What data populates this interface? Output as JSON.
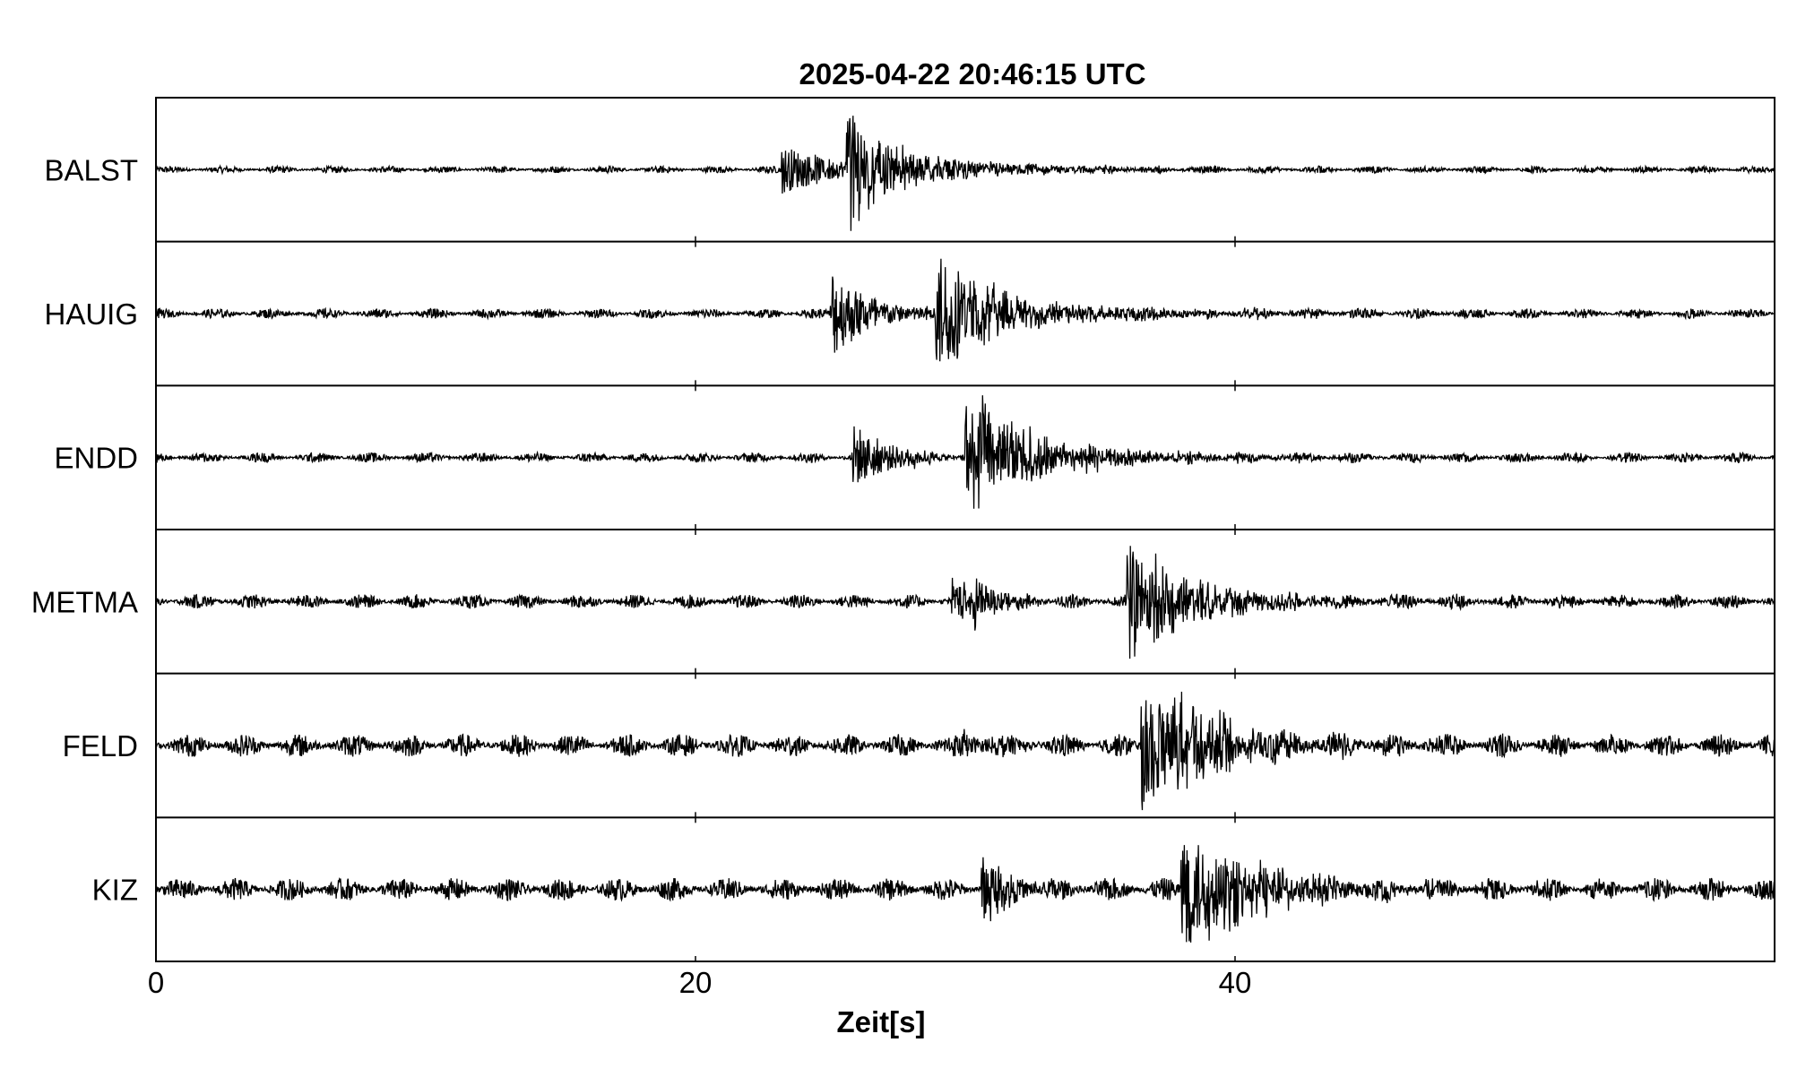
{
  "chart_data": {
    "type": "line",
    "title": "2025-04-22  20:46:15 UTC",
    "xlabel": "Zeit[s]",
    "ylabel": "",
    "xlim": [
      0,
      60
    ],
    "xticks": [
      0,
      20,
      40
    ],
    "xtick_labels": [
      "0",
      "20",
      "40"
    ],
    "grid": false,
    "line_color": "#000000",
    "series": [
      {
        "name": "BALST",
        "noise": 0.05,
        "events": [
          {
            "t": 23.2,
            "amp": 0.35,
            "decay": 2.0
          },
          {
            "t": 25.6,
            "amp": 0.95,
            "decay": 1.2
          },
          {
            "t": 26.2,
            "amp": 0.3,
            "decay": 4.0
          }
        ]
      },
      {
        "name": "HAUIG",
        "noise": 0.07,
        "events": [
          {
            "t": 25.0,
            "amp": 0.65,
            "decay": 1.5
          },
          {
            "t": 28.9,
            "amp": 0.9,
            "decay": 1.8
          },
          {
            "t": 29.5,
            "amp": 0.25,
            "decay": 5.0
          }
        ]
      },
      {
        "name": "ENDD",
        "noise": 0.07,
        "events": [
          {
            "t": 25.8,
            "amp": 0.45,
            "decay": 1.5
          },
          {
            "t": 30.0,
            "amp": 0.85,
            "decay": 2.0
          },
          {
            "t": 30.5,
            "amp": 0.25,
            "decay": 5.0
          }
        ]
      },
      {
        "name": "METMA",
        "noise": 0.1,
        "events": [
          {
            "t": 29.5,
            "amp": 0.3,
            "decay": 1.0
          },
          {
            "t": 30.3,
            "amp": 0.35,
            "decay": 1.0
          },
          {
            "t": 36.0,
            "amp": 0.9,
            "decay": 1.6
          },
          {
            "t": 37.0,
            "amp": 0.35,
            "decay": 3.5
          }
        ]
      },
      {
        "name": "FELD",
        "noise": 0.16,
        "events": [
          {
            "t": 29.8,
            "amp": 0.15,
            "decay": 1.5
          },
          {
            "t": 36.5,
            "amp": 0.95,
            "decay": 1.8
          },
          {
            "t": 37.5,
            "amp": 0.4,
            "decay": 4.0
          }
        ]
      },
      {
        "name": "KIZ",
        "noise": 0.16,
        "events": [
          {
            "t": 30.6,
            "amp": 0.45,
            "decay": 1.2
          },
          {
            "t": 38.0,
            "amp": 0.95,
            "decay": 1.6
          },
          {
            "t": 39.0,
            "amp": 0.4,
            "decay": 3.5
          }
        ]
      }
    ]
  }
}
